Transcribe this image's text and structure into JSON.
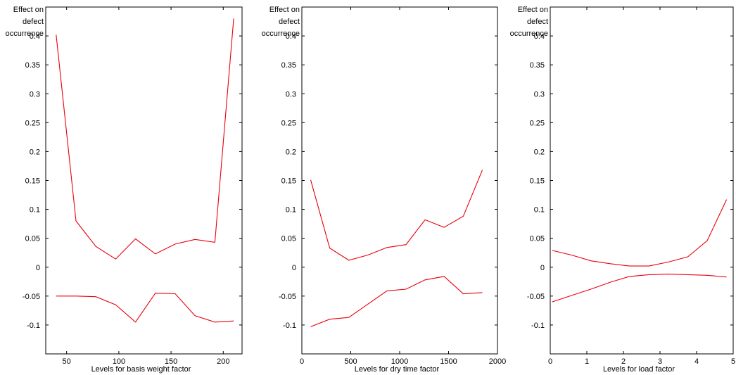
{
  "chart_data": [
    {
      "type": "line",
      "ylabel_lines": [
        "Effect on",
        "defect",
        "occurrence"
      ],
      "xlabel": "Levels for basis weight factor",
      "xlim": [
        30,
        218
      ],
      "ylim": [
        -0.15,
        0.45
      ],
      "xticks": [
        50,
        100,
        150,
        200
      ],
      "yticks": [
        -0.1,
        -0.05,
        0,
        0.05,
        0.1,
        0.15,
        0.2,
        0.25,
        0.3,
        0.35,
        0.4
      ],
      "grid": false,
      "series": [
        {
          "x": [
            40,
            59,
            78,
            97,
            116,
            135,
            154,
            173,
            192,
            210
          ],
          "y": [
            0.402,
            0.08,
            0.036,
            0.014,
            0.049,
            0.023,
            0.04,
            0.048,
            0.043,
            0.43
          ]
        },
        {
          "x": [
            40,
            59,
            78,
            97,
            116,
            135,
            154,
            173,
            192,
            210
          ],
          "y": [
            -0.05,
            -0.05,
            -0.051,
            -0.065,
            -0.095,
            -0.045,
            -0.046,
            -0.084,
            -0.095,
            -0.093
          ]
        }
      ]
    },
    {
      "type": "line",
      "ylabel_lines": [
        "Effect on",
        "defect",
        "occurrence"
      ],
      "xlabel": "Levels for dry time factor",
      "xlim": [
        0,
        2000
      ],
      "ylim": [
        -0.15,
        0.45
      ],
      "xticks": [
        0,
        500,
        1000,
        1500,
        2000
      ],
      "yticks": [
        -0.1,
        -0.05,
        0,
        0.05,
        0.1,
        0.15,
        0.2,
        0.25,
        0.3,
        0.35,
        0.4
      ],
      "grid": false,
      "series": [
        {
          "x": [
            90,
            285,
            480,
            675,
            870,
            1065,
            1260,
            1455,
            1650,
            1845
          ],
          "y": [
            0.151,
            0.033,
            0.012,
            0.021,
            0.034,
            0.039,
            0.082,
            0.069,
            0.088,
            0.168
          ]
        },
        {
          "x": [
            90,
            285,
            480,
            675,
            870,
            1065,
            1260,
            1455,
            1650,
            1845
          ],
          "y": [
            -0.103,
            -0.09,
            -0.087,
            -0.064,
            -0.041,
            -0.038,
            -0.022,
            -0.016,
            -0.046,
            -0.044
          ]
        }
      ]
    },
    {
      "type": "line",
      "ylabel_lines": [
        "Effect on",
        "defect",
        "occurrence"
      ],
      "xlabel": "Levels for load factor",
      "xlim": [
        0,
        5
      ],
      "ylim": [
        -0.15,
        0.45
      ],
      "xticks": [
        0,
        1,
        2,
        3,
        4,
        5
      ],
      "yticks": [
        -0.1,
        -0.05,
        0,
        0.05,
        0.1,
        0.15,
        0.2,
        0.25,
        0.3,
        0.35,
        0.4
      ],
      "grid": false,
      "series": [
        {
          "x": [
            0.05,
            0.58,
            1.11,
            1.64,
            2.17,
            2.7,
            3.23,
            3.76,
            4.29,
            4.82
          ],
          "y": [
            0.029,
            0.021,
            0.011,
            0.006,
            0.002,
            0.002,
            0.009,
            0.018,
            0.046,
            0.117
          ]
        },
        {
          "x": [
            0.05,
            0.58,
            1.11,
            1.64,
            2.17,
            2.7,
            3.23,
            3.76,
            4.29,
            4.82
          ],
          "y": [
            -0.06,
            -0.049,
            -0.038,
            -0.026,
            -0.016,
            -0.013,
            -0.012,
            -0.013,
            -0.014,
            -0.017
          ]
        }
      ]
    }
  ]
}
